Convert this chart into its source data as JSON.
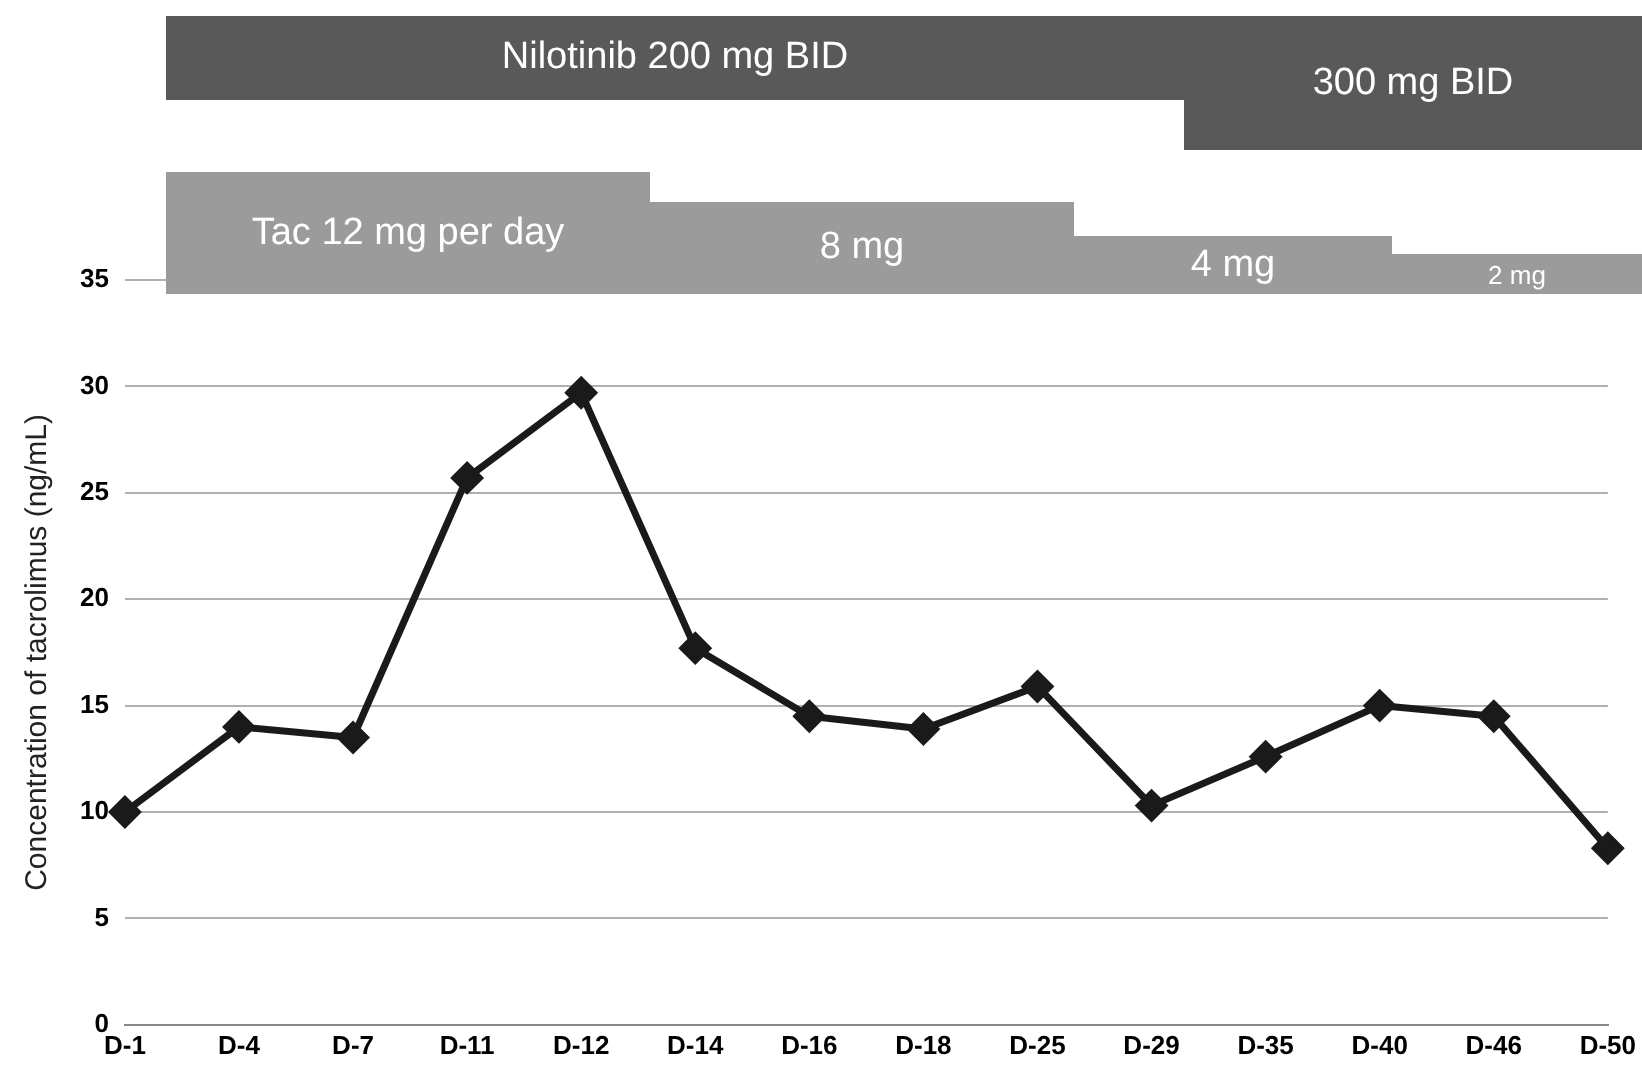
{
  "chart_data": {
    "type": "line",
    "ylabel": "Concentration of tacrolimus (ng/mL)",
    "categories": [
      "D-1",
      "D-4",
      "D-7",
      "D-11",
      "D-12",
      "D-14",
      "D-16",
      "D-18",
      "D-25",
      "D-29",
      "D-35",
      "D-40",
      "D-46",
      "D-50"
    ],
    "series": [
      {
        "color": "#1a1a1a",
        "values": [
          10,
          14,
          13.5,
          25.7,
          29.7,
          17.7,
          14.5,
          13.9,
          15.9,
          10.3,
          12.6,
          15,
          14.5,
          8.3
        ]
      }
    ],
    "ylim": [
      0,
      35
    ],
    "yticks": [
      0,
      5,
      10,
      15,
      20,
      25,
      30,
      35
    ],
    "grid": "y",
    "legend": false,
    "marker": "diamond",
    "line_style": "solid",
    "annotations": [
      "Nilotinib 200 mg BID",
      "300 mg BID",
      "Tac 12 mg per day",
      "8 mg",
      "4 mg",
      "2 mg"
    ]
  }
}
